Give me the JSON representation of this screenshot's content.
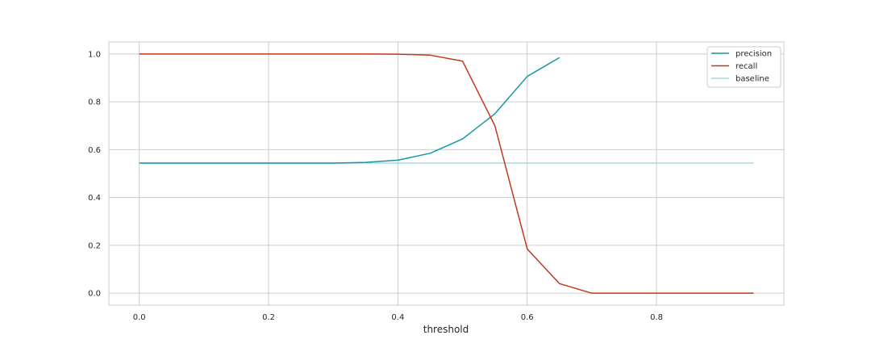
{
  "chart_data": {
    "type": "line",
    "title": "",
    "xlabel": "threshold",
    "ylabel": "",
    "xlim": [
      -0.047,
      0.997
    ],
    "ylim": [
      -0.05,
      1.05
    ],
    "x_ticks": [
      "0.0",
      "0.2",
      "0.4",
      "0.6",
      "0.8"
    ],
    "x_tick_values": [
      0.0,
      0.2,
      0.4,
      0.6,
      0.8
    ],
    "y_ticks": [
      "0.0",
      "0.2",
      "0.4",
      "0.6",
      "0.8",
      "1.0"
    ],
    "y_tick_values": [
      0.0,
      0.2,
      0.4,
      0.6,
      0.8,
      1.0
    ],
    "grid": true,
    "legend_position": "top-right",
    "series": [
      {
        "name": "precision",
        "color": "#17979f",
        "x": [
          0.0,
          0.05,
          0.1,
          0.15,
          0.2,
          0.25,
          0.3,
          0.35,
          0.4,
          0.45,
          0.5,
          0.55,
          0.6,
          0.65
        ],
        "y": [
          0.544,
          0.544,
          0.544,
          0.544,
          0.544,
          0.544,
          0.544,
          0.547,
          0.556,
          0.585,
          0.645,
          0.75,
          0.906,
          0.985
        ]
      },
      {
        "name": "recall",
        "color": "#c0391b",
        "x": [
          0.0,
          0.05,
          0.1,
          0.15,
          0.2,
          0.25,
          0.3,
          0.35,
          0.4,
          0.45,
          0.5,
          0.55,
          0.6,
          0.65,
          0.7,
          0.75,
          0.8,
          0.85,
          0.9,
          0.95
        ],
        "y": [
          1.0,
          1.0,
          1.0,
          1.0,
          1.0,
          1.0,
          1.0,
          1.0,
          0.999,
          0.995,
          0.97,
          0.7,
          0.185,
          0.04,
          0.0,
          0.0,
          0.0,
          0.0,
          0.0,
          0.0
        ]
      },
      {
        "name": "baseline",
        "color": "#a8d8e0",
        "x": [
          0.0,
          0.95
        ],
        "y": [
          0.544,
          0.544
        ]
      }
    ]
  }
}
